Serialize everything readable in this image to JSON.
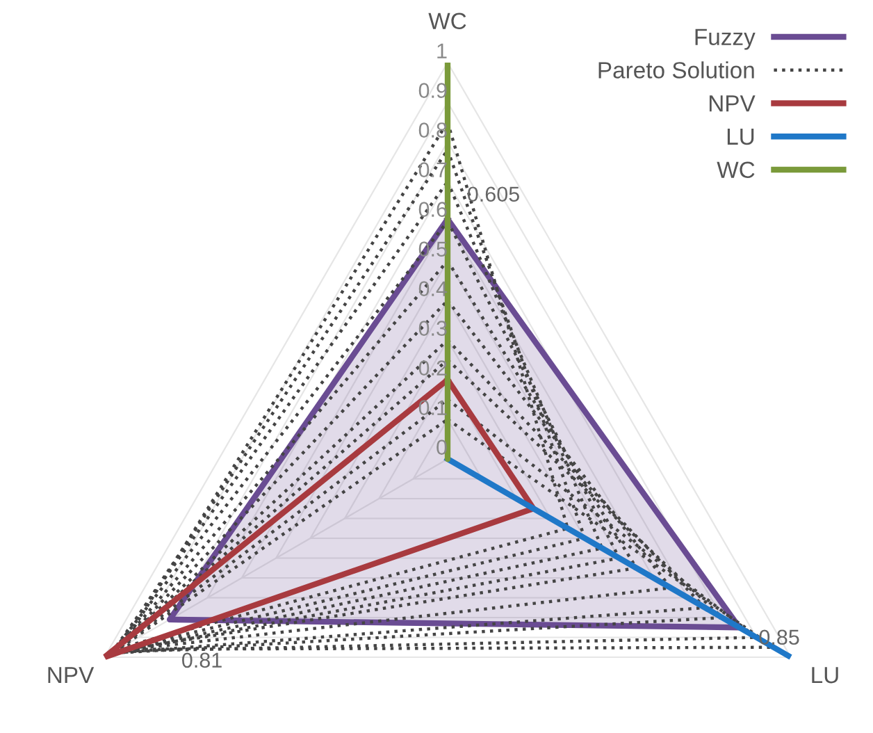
{
  "chart_data": {
    "type": "radar",
    "categories": [
      "WC",
      "LU",
      "NPV"
    ],
    "ylim": [
      0,
      1
    ],
    "yticks": [
      0,
      0.1,
      0.2,
      0.3,
      0.4,
      0.5,
      0.6,
      0.7,
      0.8,
      0.9,
      1
    ],
    "grid": true,
    "legend": "top right",
    "series": [
      {
        "name": "Fuzzy",
        "type": "area",
        "color": "#6a4c93",
        "values": [
          0.605,
          0.85,
          0.81
        ],
        "value_labels": [
          "0.605",
          "0.85",
          "0.81"
        ]
      },
      {
        "name": "Pareto Solution",
        "color": "#444444",
        "line_style": "dotted",
        "values": [
          0.85,
          0.35,
          0.95
        ]
      },
      {
        "color": "#444444",
        "line_style": "dotted",
        "values": [
          0.78,
          0.4,
          0.97
        ]
      },
      {
        "color": "#444444",
        "line_style": "dotted",
        "values": [
          0.7,
          0.45,
          0.98
        ]
      },
      {
        "color": "#444444",
        "line_style": "dotted",
        "values": [
          0.6,
          0.5,
          0.98
        ]
      },
      {
        "color": "#444444",
        "line_style": "dotted",
        "values": [
          0.5,
          0.55,
          0.97
        ]
      },
      {
        "color": "#444444",
        "line_style": "dotted",
        "values": [
          0.4,
          0.65,
          0.97
        ]
      },
      {
        "color": "#444444",
        "line_style": "dotted",
        "values": [
          0.3,
          0.75,
          0.98
        ]
      },
      {
        "color": "#444444",
        "line_style": "dotted",
        "values": [
          0.25,
          0.8,
          0.98
        ]
      },
      {
        "color": "#444444",
        "line_style": "dotted",
        "values": [
          0.15,
          0.9,
          0.97
        ]
      },
      {
        "color": "#444444",
        "line_style": "dotted",
        "values": [
          0.1,
          0.95,
          0.96
        ]
      },
      {
        "name": "NPV",
        "color": "#a83a3f",
        "values": [
          0.2,
          0.25,
          1
        ]
      },
      {
        "name": "LU",
        "color": "#1f78c8",
        "values": [
          0,
          1,
          0
        ]
      },
      {
        "name": "WC",
        "color": "#7a9a3a",
        "values": [
          1,
          0,
          0
        ]
      }
    ]
  }
}
